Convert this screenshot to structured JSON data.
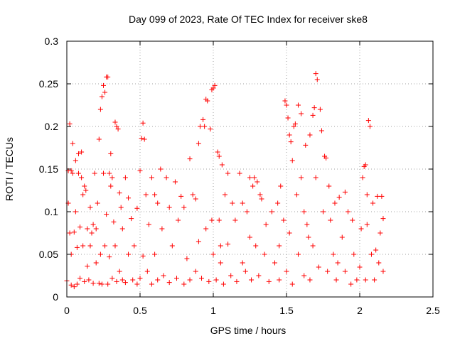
{
  "chart_data": {
    "type": "scatter",
    "title": "Day 099 of 2023, Rate Of TEC Index for receiver ske8",
    "xlabel": "GPS time / hours",
    "ylabel": "ROTI / TECUs",
    "xlim": [
      0,
      2.5
    ],
    "ylim": [
      0,
      0.3
    ],
    "x_ticks": [
      0,
      0.5,
      1,
      1.5,
      2,
      2.5
    ],
    "x_tick_labels": [
      "0",
      "0.5",
      "1",
      "1.5",
      "2",
      "2.5"
    ],
    "y_ticks": [
      0,
      0.05,
      0.1,
      0.15,
      0.2,
      0.25,
      0.3
    ],
    "y_tick_labels": [
      "0",
      "0.05",
      "0.1",
      "0.15",
      "0.2",
      "0.25",
      "0.3"
    ],
    "grid": true,
    "marker": "plus",
    "color": "#ff0000",
    "series": [
      {
        "values_format": "[x_hours, y_roti]",
        "points": [
          [
            0.0,
            0.019
          ],
          [
            0.01,
            0.148
          ],
          [
            0.01,
            0.11
          ],
          [
            0.02,
            0.203
          ],
          [
            0.02,
            0.075
          ],
          [
            0.03,
            0.148
          ],
          [
            0.03,
            0.014
          ],
          [
            0.03,
            0.05
          ],
          [
            0.04,
            0.18
          ],
          [
            0.04,
            0.145
          ],
          [
            0.05,
            0.012
          ],
          [
            0.05,
            0.076
          ],
          [
            0.06,
            0.16
          ],
          [
            0.06,
            0.1
          ],
          [
            0.07,
            0.015
          ],
          [
            0.07,
            0.058
          ],
          [
            0.08,
            0.168
          ],
          [
            0.08,
            0.145
          ],
          [
            0.09,
            0.022
          ],
          [
            0.09,
            0.082
          ],
          [
            0.1,
            0.14
          ],
          [
            0.1,
            0.17
          ],
          [
            0.11,
            0.12
          ],
          [
            0.11,
            0.06
          ],
          [
            0.12,
            0.018
          ],
          [
            0.12,
            0.13
          ],
          [
            0.13,
            0.125
          ],
          [
            0.14,
            0.036
          ],
          [
            0.14,
            0.08
          ],
          [
            0.15,
            0.02
          ],
          [
            0.16,
            0.105
          ],
          [
            0.16,
            0.06
          ],
          [
            0.17,
            0.075
          ],
          [
            0.18,
            0.085
          ],
          [
            0.18,
            0.016
          ],
          [
            0.19,
            0.145
          ],
          [
            0.2,
            0.08
          ],
          [
            0.2,
            0.04
          ],
          [
            0.21,
            0.11
          ],
          [
            0.22,
            0.185
          ],
          [
            0.22,
            0.016
          ],
          [
            0.23,
            0.22
          ],
          [
            0.23,
            0.05
          ],
          [
            0.24,
            0.235
          ],
          [
            0.24,
            0.015
          ],
          [
            0.25,
            0.248
          ],
          [
            0.25,
            0.145
          ],
          [
            0.26,
            0.24
          ],
          [
            0.26,
            0.06
          ],
          [
            0.27,
            0.258
          ],
          [
            0.27,
            0.097
          ],
          [
            0.28,
            0.258
          ],
          [
            0.28,
            0.015
          ],
          [
            0.29,
            0.145
          ],
          [
            0.29,
            0.047
          ],
          [
            0.3,
            0.168
          ],
          [
            0.3,
            0.13
          ],
          [
            0.31,
            0.14
          ],
          [
            0.31,
            0.022
          ],
          [
            0.32,
            0.088
          ],
          [
            0.33,
            0.205
          ],
          [
            0.33,
            0.06
          ],
          [
            0.34,
            0.2
          ],
          [
            0.34,
            0.018
          ],
          [
            0.35,
            0.197
          ],
          [
            0.36,
            0.122
          ],
          [
            0.36,
            0.03
          ],
          [
            0.37,
            0.105
          ],
          [
            0.38,
            0.02
          ],
          [
            0.38,
            0.08
          ],
          [
            0.4,
            0.14
          ],
          [
            0.4,
            0.017
          ],
          [
            0.42,
            0.116
          ],
          [
            0.42,
            0.05
          ],
          [
            0.44,
            0.092
          ],
          [
            0.45,
            0.02
          ],
          [
            0.46,
            0.06
          ],
          [
            0.48,
            0.104
          ],
          [
            0.48,
            0.015
          ],
          [
            0.5,
            0.148
          ],
          [
            0.5,
            0.022
          ],
          [
            0.51,
            0.186
          ],
          [
            0.52,
            0.204
          ],
          [
            0.52,
            0.048
          ],
          [
            0.53,
            0.185
          ],
          [
            0.54,
            0.12
          ],
          [
            0.55,
            0.03
          ],
          [
            0.56,
            0.085
          ],
          [
            0.58,
            0.14
          ],
          [
            0.58,
            0.015
          ],
          [
            0.6,
            0.12
          ],
          [
            0.6,
            0.05
          ],
          [
            0.62,
            0.11
          ],
          [
            0.62,
            0.02
          ],
          [
            0.64,
            0.15
          ],
          [
            0.65,
            0.08
          ],
          [
            0.66,
            0.025
          ],
          [
            0.68,
            0.14
          ],
          [
            0.7,
            0.105
          ],
          [
            0.7,
            0.017
          ],
          [
            0.72,
            0.06
          ],
          [
            0.74,
            0.135
          ],
          [
            0.75,
            0.022
          ],
          [
            0.76,
            0.09
          ],
          [
            0.78,
            0.118
          ],
          [
            0.8,
            0.015
          ],
          [
            0.8,
            0.105
          ],
          [
            0.82,
            0.045
          ],
          [
            0.84,
            0.162
          ],
          [
            0.84,
            0.02
          ],
          [
            0.86,
            0.12
          ],
          [
            0.88,
            0.03
          ],
          [
            0.88,
            0.115
          ],
          [
            0.9,
            0.18
          ],
          [
            0.9,
            0.065
          ],
          [
            0.91,
            0.2
          ],
          [
            0.92,
            0.022
          ],
          [
            0.93,
            0.208
          ],
          [
            0.94,
            0.2
          ],
          [
            0.95,
            0.232
          ],
          [
            0.95,
            0.08
          ],
          [
            0.96,
            0.23
          ],
          [
            0.97,
            0.018
          ],
          [
            0.98,
            0.197
          ],
          [
            0.99,
            0.243
          ],
          [
            0.99,
            0.09
          ],
          [
            1.0,
            0.245
          ],
          [
            1.0,
            0.05
          ],
          [
            1.01,
            0.248
          ],
          [
            1.02,
            0.02
          ],
          [
            1.03,
            0.17
          ],
          [
            1.04,
            0.165
          ],
          [
            1.04,
            0.09
          ],
          [
            1.05,
            0.04
          ],
          [
            1.06,
            0.155
          ],
          [
            1.07,
            0.015
          ],
          [
            1.08,
            0.12
          ],
          [
            1.1,
            0.145
          ],
          [
            1.1,
            0.062
          ],
          [
            1.12,
            0.025
          ],
          [
            1.13,
            0.11
          ],
          [
            1.15,
            0.09
          ],
          [
            1.16,
            0.018
          ],
          [
            1.18,
            0.145
          ],
          [
            1.2,
            0.11
          ],
          [
            1.2,
            0.04
          ],
          [
            1.22,
            0.03
          ],
          [
            1.23,
            0.1
          ],
          [
            1.25,
            0.14
          ],
          [
            1.26,
            0.02
          ],
          [
            1.27,
            0.13
          ],
          [
            1.28,
            0.14
          ],
          [
            1.29,
            0.06
          ],
          [
            1.3,
            0.135
          ],
          [
            1.31,
            0.025
          ],
          [
            1.32,
            0.12
          ],
          [
            1.33,
            0.115
          ],
          [
            1.35,
            0.05
          ],
          [
            1.36,
            0.085
          ],
          [
            1.38,
            0.018
          ],
          [
            1.4,
            0.1
          ],
          [
            1.42,
            0.04
          ],
          [
            1.44,
            0.11
          ],
          [
            1.45,
            0.02
          ],
          [
            1.46,
            0.13
          ],
          [
            1.48,
            0.09
          ],
          [
            1.49,
            0.23
          ],
          [
            1.5,
            0.225
          ],
          [
            1.5,
            0.03
          ],
          [
            1.51,
            0.21
          ],
          [
            1.52,
            0.19
          ],
          [
            1.52,
            0.075
          ],
          [
            1.53,
            0.182
          ],
          [
            1.54,
            0.16
          ],
          [
            1.54,
            0.015
          ],
          [
            1.55,
            0.2
          ],
          [
            1.56,
            0.203
          ],
          [
            1.57,
            0.12
          ],
          [
            1.58,
            0.225
          ],
          [
            1.58,
            0.05
          ],
          [
            1.6,
            0.215
          ],
          [
            1.6,
            0.14
          ],
          [
            1.62,
            0.1
          ],
          [
            1.62,
            0.025
          ],
          [
            1.63,
            0.178
          ],
          [
            1.64,
            0.085
          ],
          [
            1.66,
            0.19
          ],
          [
            1.66,
            0.02
          ],
          [
            1.68,
            0.213
          ],
          [
            1.68,
            0.06
          ],
          [
            1.69,
            0.222
          ],
          [
            1.7,
            0.262
          ],
          [
            1.7,
            0.14
          ],
          [
            1.71,
            0.255
          ],
          [
            1.72,
            0.035
          ],
          [
            1.73,
            0.22
          ],
          [
            1.74,
            0.195
          ],
          [
            1.75,
            0.1
          ],
          [
            1.76,
            0.165
          ],
          [
            1.77,
            0.163
          ],
          [
            1.78,
            0.03
          ],
          [
            1.79,
            0.13
          ],
          [
            1.8,
            0.09
          ],
          [
            1.82,
            0.05
          ],
          [
            1.83,
            0.11
          ],
          [
            1.84,
            0.02
          ],
          [
            1.86,
            0.117
          ],
          [
            1.88,
            0.07
          ],
          [
            1.9,
            0.123
          ],
          [
            1.9,
            0.03
          ],
          [
            1.92,
            0.1
          ],
          [
            1.94,
            0.015
          ],
          [
            1.95,
            0.09
          ],
          [
            1.96,
            0.05
          ],
          [
            1.98,
            0.02
          ],
          [
            2.0,
            0.035
          ],
          [
            2.01,
            0.08
          ],
          [
            2.02,
            0.14
          ],
          [
            2.03,
            0.153
          ],
          [
            2.04,
            0.155
          ],
          [
            2.04,
            0.02
          ],
          [
            2.05,
            0.12
          ],
          [
            2.06,
            0.207
          ],
          [
            2.07,
            0.2
          ],
          [
            2.08,
            0.05
          ],
          [
            2.09,
            0.11
          ],
          [
            2.1,
            0.02
          ],
          [
            2.11,
            0.055
          ],
          [
            2.12,
            0.118
          ],
          [
            2.13,
            0.04
          ],
          [
            2.14,
            0.075
          ],
          [
            2.15,
            0.118
          ],
          [
            2.16,
            0.092
          ],
          [
            2.16,
            0.03
          ],
          [
            2.05,
            0.085
          ],
          [
            1.85,
            0.04
          ],
          [
            1.65,
            0.07
          ],
          [
            1.45,
            0.06
          ],
          [
            1.25,
            0.07
          ],
          [
            1.05,
            0.06
          ]
        ]
      }
    ]
  }
}
